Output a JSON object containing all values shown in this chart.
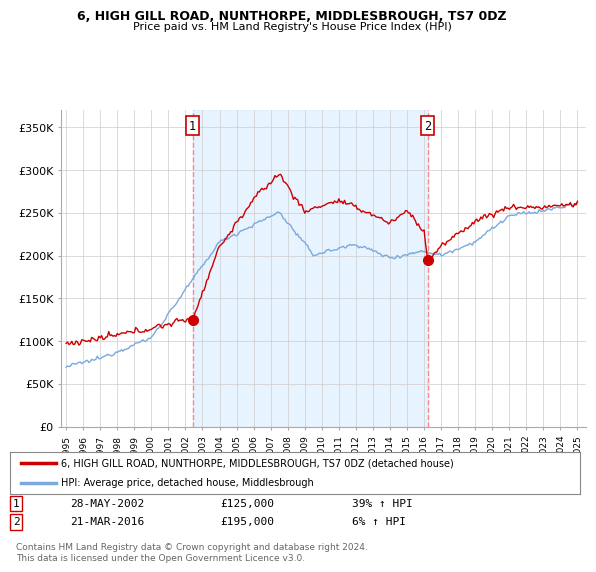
{
  "title": "6, HIGH GILL ROAD, NUNTHORPE, MIDDLESBROUGH, TS7 0DZ",
  "subtitle": "Price paid vs. HM Land Registry's House Price Index (HPI)",
  "legend_line1": "6, HIGH GILL ROAD, NUNTHORPE, MIDDLESBROUGH, TS7 0DZ (detached house)",
  "legend_line2": "HPI: Average price, detached house, Middlesbrough",
  "transaction1_date": "28-MAY-2002",
  "transaction1_price": "£125,000",
  "transaction1_change": "39% ↑ HPI",
  "transaction2_date": "21-MAR-2016",
  "transaction2_price": "£195,000",
  "transaction2_change": "6% ↑ HPI",
  "footnote": "Contains HM Land Registry data © Crown copyright and database right 2024.\nThis data is licensed under the Open Government Licence v3.0.",
  "price_color": "#cc0000",
  "hpi_color": "#7aaadd",
  "hpi_fill_color": "#ddeeff",
  "vline_color": "#ff8888",
  "marker_color": "#cc0000",
  "ylim": [
    0,
    370000
  ],
  "yticks": [
    0,
    50000,
    100000,
    150000,
    200000,
    250000,
    300000,
    350000
  ],
  "bg_color": "#ffffff",
  "grid_color": "#cccccc",
  "transaction1_x": 2002.42,
  "transaction1_y": 125000,
  "transaction2_x": 2016.22,
  "transaction2_y": 195000,
  "xmin": 1995,
  "xmax": 2025
}
